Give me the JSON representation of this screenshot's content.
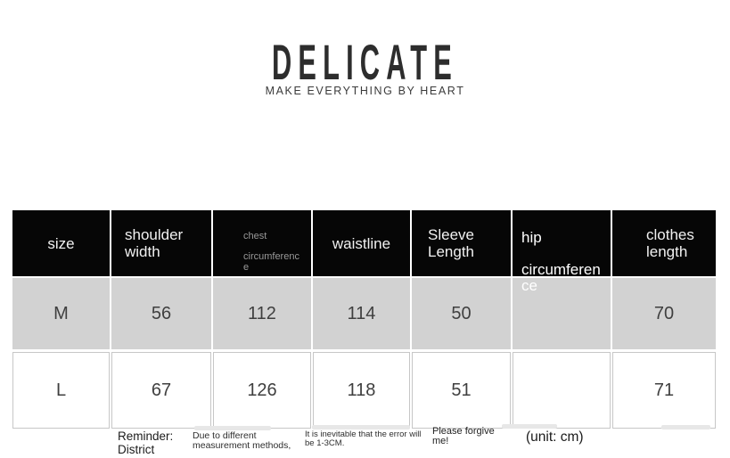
{
  "brand": {
    "title": "DELICATE",
    "tagline": "MAKE EVERYTHING BY HEART"
  },
  "table": {
    "columns": [
      {
        "label": "size"
      },
      {
        "label": "shoulder width"
      },
      {
        "line1": "chest",
        "line2": "circumference"
      },
      {
        "label": "waistline"
      },
      {
        "label": "Sleeve Length"
      },
      {
        "line1": "hip",
        "line2": "circumference"
      },
      {
        "label": "clothes length"
      }
    ],
    "rows": [
      {
        "label": "M",
        "values": [
          "56",
          "112",
          "114",
          "50",
          "",
          "70"
        ]
      },
      {
        "label": "L",
        "values": [
          "67",
          "126",
          "118",
          "51",
          "",
          "71"
        ]
      }
    ]
  },
  "footnotes": {
    "reminder": {
      "line1": "Reminder:",
      "line2": "District"
    },
    "method": {
      "line1": "Due to different",
      "line2": "measurement methods,"
    },
    "error": {
      "line1": "It is inevitable that the error will",
      "line2": "be 1-3CM."
    },
    "forgive": {
      "line1": "Please forgive",
      "line2": "me!"
    },
    "unit": "(unit: cm)"
  },
  "colors": {
    "header_bg": "#060606",
    "header_text": "#f1f1f1",
    "muted_header_text": "#999999",
    "row_m_bg": "#d2d2d2",
    "row_l_border": "#c7c7c7",
    "value_text": "#3f3f3f",
    "brand_text": "#2d2d2d"
  }
}
